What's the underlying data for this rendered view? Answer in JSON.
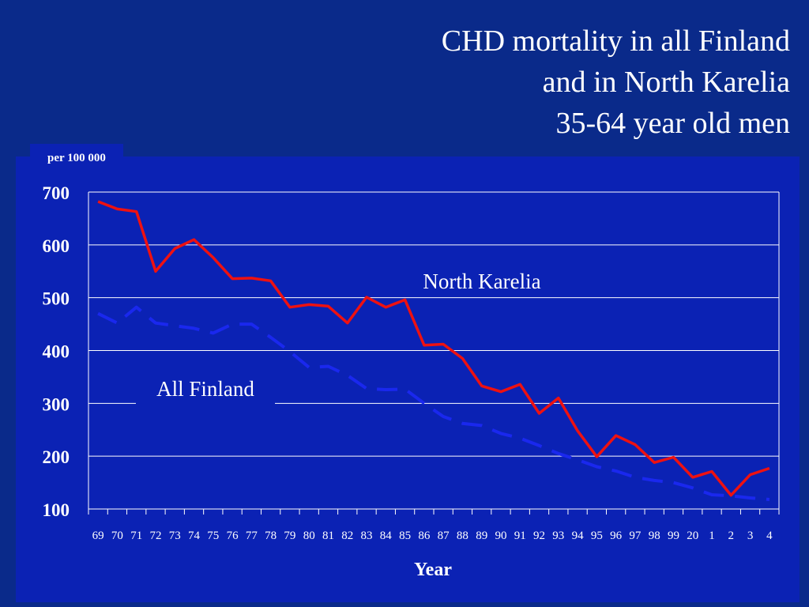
{
  "slide": {
    "title_lines": [
      "CHD mortality in all Finland",
      "and in North Karelia",
      "35-64 year old men"
    ]
  },
  "chart_data": {
    "type": "line",
    "unit_label": "per 100 000",
    "xlabel": "Year",
    "ylabel": "",
    "ylim": [
      100,
      700
    ],
    "yticks": [
      100,
      200,
      300,
      400,
      500,
      600,
      700
    ],
    "grid": true,
    "categories": [
      "69",
      "70",
      "71",
      "72",
      "73",
      "74",
      "75",
      "76",
      "77",
      "78",
      "79",
      "80",
      "81",
      "82",
      "83",
      "84",
      "85",
      "86",
      "87",
      "88",
      "89",
      "90",
      "91",
      "92",
      "93",
      "94",
      "95",
      "96",
      "97",
      "98",
      "99",
      "20",
      "1",
      "2",
      "3",
      "4"
    ],
    "series": [
      {
        "name": "North Karelia",
        "color": "#ee1111",
        "style": "solid",
        "values": [
          682,
          668,
          663,
          550,
          593,
          610,
          576,
          536,
          537,
          532,
          482,
          487,
          484,
          452,
          501,
          482,
          496,
          410,
          412,
          385,
          333,
          322,
          336,
          281,
          310,
          248,
          199,
          239,
          222,
          188,
          198,
          160,
          171,
          126,
          165,
          177
        ]
      },
      {
        "name": "All Finland",
        "color": "#1a28ee",
        "style": "dashed",
        "values": [
          470,
          452,
          482,
          452,
          447,
          442,
          433,
          450,
          450,
          425,
          398,
          368,
          370,
          353,
          328,
          326,
          327,
          300,
          275,
          262,
          258,
          243,
          234,
          220,
          205,
          193,
          180,
          172,
          160,
          154,
          150,
          140,
          127,
          125,
          121,
          118
        ]
      }
    ]
  }
}
